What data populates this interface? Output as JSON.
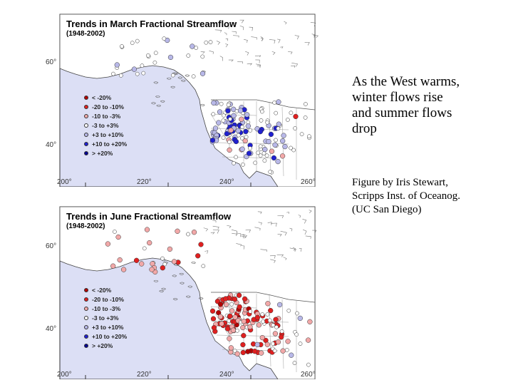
{
  "slide": {
    "headline_lines": [
      "As the West warms,",
      "winter flows rise",
      "and summer flows",
      "drop"
    ],
    "credit_lines": [
      "Figure by Iris Stewart,",
      "Scripps Inst. of Oceanog.",
      "(UC San Diego)"
    ]
  },
  "legend": [
    {
      "label": "< -20%",
      "color": "#b30000"
    },
    {
      "label": "-20 to -10%",
      "color": "#e02020"
    },
    {
      "label": "-10 to  -3%",
      "color": "#f2a8a8"
    },
    {
      "label": "-3 to  +3%",
      "color": "#ffffff"
    },
    {
      "label": "+3 to +10%",
      "color": "#b8b8e8"
    },
    {
      "label": "+10 to +20%",
      "color": "#2020d0"
    },
    {
      "label": "> +20%",
      "color": "#000090"
    }
  ],
  "maps": [
    {
      "title": "Trends in March Fractional Streamflow",
      "period": "(1948-2002)",
      "lat_labels": [
        "60°",
        "40°"
      ],
      "lon_labels": [
        "200°",
        "220°",
        "240°",
        "260°"
      ],
      "dominant": "increase"
    },
    {
      "title": "Trends in June Fractional Streamflow",
      "period": "(1948-2002)",
      "lat_labels": [
        "60°",
        "40°"
      ],
      "lon_labels": [
        "200°",
        "220°",
        "240°",
        "260°"
      ],
      "dominant": "decrease"
    }
  ],
  "colors": {
    "ocean": "#dcdff5",
    "land": "#ffffff",
    "border": "#555555"
  }
}
